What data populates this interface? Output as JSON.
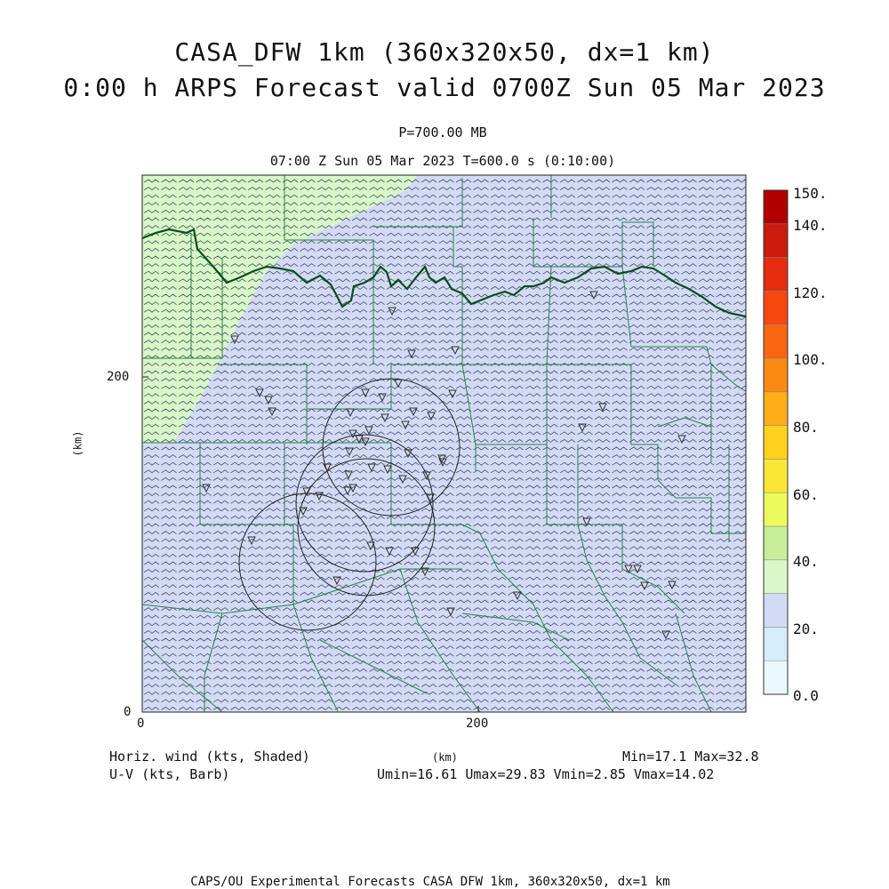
{
  "title_line1": "CASA_DFW 1km (360x320x50, dx=1 km)",
  "title_line2": "0:00 h ARPS Forecast valid 0700Z Sun 05 Mar 2023",
  "pressure_level": "P=700.00 MB",
  "time_line": "07:00 Z Sun 05 Mar 2023    T=600.0 s (0:10:00)",
  "axes": {
    "x_label": "(km)",
    "y_label": "(km)",
    "x_ticks": [
      "0",
      "200"
    ],
    "y_ticks": [
      "0",
      "200"
    ],
    "x_range_km": [
      0,
      360
    ],
    "y_range_km": [
      0,
      320
    ]
  },
  "legend_left": {
    "line1": "Horiz. wind (kts, Shaded)",
    "line2": "U-V (kts, Barb)"
  },
  "stats": {
    "min_max": "Min=17.1 Max=32.8",
    "uv": "Umin=16.61 Umax=29.83 Vmin=2.85 Vmax=14.02"
  },
  "colorbar": {
    "labels": [
      "150.",
      "140.",
      "120.",
      "100.",
      "80.",
      "60.",
      "40.",
      "20.",
      "0.0"
    ],
    "colors": [
      "#ebf8fe",
      "#d4ecfb",
      "#d3dbf4",
      "#d8f7c8",
      "#c7ee9a",
      "#ecfb5b",
      "#fbe638",
      "#ffd21d",
      "#ffae18",
      "#fb8a12",
      "#f86612",
      "#f6480e",
      "#e42c0e",
      "#cc1a0c",
      "#b00000"
    ],
    "range": [
      0,
      150
    ]
  },
  "colors": {
    "field_20_30": "#d3dbf4",
    "field_30_40": "#d8f7c8",
    "county_lines": "#2f7f4a",
    "state_line": "#0d4d1d"
  },
  "footer": "CAPS/OU Experimental Forecasts  CASA DFW 1km, 360x320x50, dx=1 km"
}
